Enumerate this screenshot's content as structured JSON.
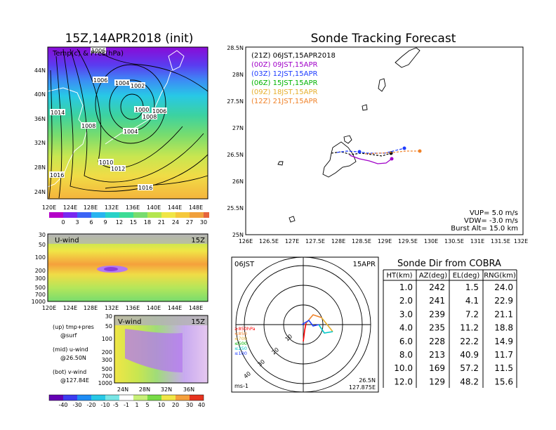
{
  "left_title": "15Z,14APR2018 (init)",
  "right_title": "Sonde Tracking Forecast",
  "map_top": {
    "label": "Temp(c) & Pres(hPa)",
    "lat_ticks": [
      "44N",
      "40N",
      "36N",
      "32N",
      "28N",
      "24N"
    ],
    "lon_ticks": [
      "120E",
      "124E",
      "128E",
      "132E",
      "136E",
      "140E",
      "144E",
      "148E"
    ],
    "isobar_labels": [
      "1006",
      "1006",
      "1004",
      "1002",
      "1000",
      "1006",
      "1008",
      "1014",
      "1008",
      "1004",
      "1010",
      "1012",
      "1016",
      "1016"
    ],
    "colorbar_labels": [
      "0",
      "3",
      "6",
      "9",
      "12",
      "15",
      "18",
      "21",
      "24",
      "27",
      "30"
    ]
  },
  "u_wind": {
    "label": "U-wind",
    "time": "15Z",
    "p_ticks": [
      "30",
      "50",
      "100",
      "200",
      "300",
      "500",
      "700",
      "1000"
    ],
    "lon_ticks": [
      "120E",
      "124E",
      "128E",
      "132E",
      "136E",
      "140E",
      "144E",
      "148E"
    ]
  },
  "v_wind": {
    "label": "V-wind",
    "time": "15Z",
    "p_ticks": [
      "30",
      "50",
      "100",
      "200",
      "300",
      "500",
      "700",
      "1000"
    ],
    "lat_ticks": [
      "24N",
      "28N",
      "32N",
      "36N"
    ],
    "colorbar_labels": [
      "-40",
      "-30",
      "-20",
      "-10",
      "-5",
      "-1",
      "1",
      "5",
      "10",
      "20",
      "30",
      "40"
    ]
  },
  "notes": {
    "up1": "(up) tmp+pres",
    "up2": "@surf",
    "mid1": "(mid) u-wind",
    "mid2": "@26.50N",
    "bot1": "(bot) v-wind",
    "bot2": "@127.84E"
  },
  "forecast_legend": [
    {
      "code": "(21Z)",
      "text": "06JST,15APR2018",
      "color": "#000000"
    },
    {
      "code": "(00Z)",
      "text": "09JST,15APR",
      "color": "#a000c8"
    },
    {
      "code": "(03Z)",
      "text": "12JST,15APR",
      "color": "#1e3cff"
    },
    {
      "code": "(06Z)",
      "text": "15JST,15APR",
      "color": "#00b400"
    },
    {
      "code": "(09Z)",
      "text": "18JST,15APR",
      "color": "#e6af2d"
    },
    {
      "code": "(12Z)",
      "text": "21JST,15APR",
      "color": "#f08228"
    }
  ],
  "track_map": {
    "lat_ticks": [
      "28.5N",
      "28N",
      "27.5N",
      "27N",
      "26.5N",
      "26N",
      "25.5N",
      "25N"
    ],
    "lon_ticks": [
      "126E",
      "126.5E",
      "127E",
      "127.5E",
      "128E",
      "128.5E",
      "129E",
      "129.5E",
      "130E",
      "130.5E",
      "131E",
      "131.5E",
      "132E"
    ],
    "vup": "VUP= 5.0 m/s",
    "vdw": "VDW= -3.0 m/s",
    "burst": "Burst Alt= 15.0 km"
  },
  "hodograph": {
    "time": "06JST",
    "date": "15APR",
    "ring_labels": [
      "10",
      "20",
      "30",
      "40"
    ],
    "units": "ms-1",
    "lat": "26.5N",
    "lon": "127.875E",
    "layers": [
      {
        "label": "≥850hPa",
        "color": "#ff0000"
      },
      {
        "label": "≤850",
        "color": "#f08228"
      },
      {
        "label": "≤700",
        "color": "#e6af2d"
      },
      {
        "label": "≤500",
        "color": "#00b400"
      },
      {
        "label": "≤250",
        "color": "#00c8c8"
      },
      {
        "label": "≤100",
        "color": "#1e3cff"
      }
    ]
  },
  "chart_data": {
    "type": "table",
    "title": "Sonde Dir from COBRA",
    "columns": [
      "HT(km)",
      "AZ(deg)",
      "EL(deg)",
      "RNG(km)"
    ],
    "rows": [
      [
        "1.0",
        "242",
        "1.5",
        "24.0"
      ],
      [
        "2.0",
        "241",
        "4.1",
        "22.9"
      ],
      [
        "3.0",
        "239",
        "7.2",
        "21.1"
      ],
      [
        "4.0",
        "235",
        "11.2",
        "18.8"
      ],
      [
        "6.0",
        "228",
        "22.2",
        "14.9"
      ],
      [
        "8.0",
        "213",
        "40.9",
        "11.7"
      ],
      [
        "10.0",
        "169",
        "57.2",
        "11.5"
      ],
      [
        "12.0",
        "129",
        "48.2",
        "15.6"
      ]
    ]
  }
}
